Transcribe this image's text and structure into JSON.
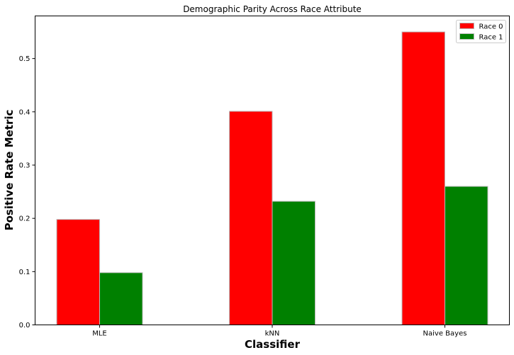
{
  "chart_data": {
    "type": "bar",
    "title": "Demographic Parity Across Race Attribute",
    "xlabel": "Classifier",
    "ylabel": "Positive Rate Metric",
    "categories": [
      "MLE",
      "kNN",
      "Naive Bayes"
    ],
    "series": [
      {
        "name": "Race 0",
        "color": "#ff0000",
        "values": [
          0.198,
          0.401,
          0.55
        ]
      },
      {
        "name": "Race 1",
        "color": "#008000",
        "values": [
          0.098,
          0.232,
          0.26
        ]
      }
    ],
    "ylim": [
      0,
      0.58
    ],
    "yticks": [
      0.0,
      0.1,
      0.2,
      0.3,
      0.4,
      0.5
    ],
    "ytick_labels": [
      "0.0",
      "0.1",
      "0.2",
      "0.3",
      "0.4",
      "0.5"
    ],
    "grid": false,
    "legend_position": "top-right",
    "bar_edge_color": "#bbbbbb"
  }
}
